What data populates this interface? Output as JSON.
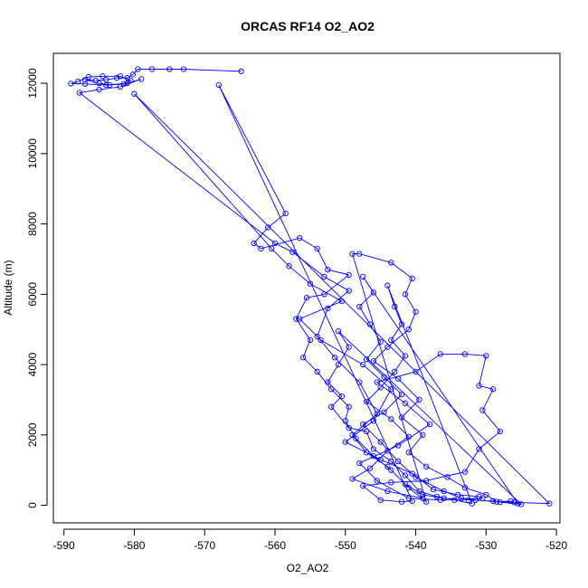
{
  "chart_data": {
    "type": "scatter",
    "title": "ORCAS RF14 O2_AO2",
    "xlabel": "O2_AO2",
    "ylabel": "Altitude (m)",
    "xlim": [
      -591.5,
      -519.5
    ],
    "ylim": [
      -500,
      12850
    ],
    "x_ticks": [
      -590,
      -580,
      -570,
      -560,
      -550,
      -540,
      -530,
      -520
    ],
    "y_ticks": [
      0,
      2000,
      4000,
      6000,
      8000,
      10000,
      12000
    ],
    "x_tick_labels": [
      "-590",
      "-580",
      "-570",
      "-560",
      "-550",
      "-540",
      "-530",
      "-520"
    ],
    "y_tick_labels": [
      "0",
      "2000",
      "4000",
      "6000",
      "8000",
      "10000",
      "12000"
    ],
    "grid": false,
    "legend": "none",
    "color": "#0000ff",
    "series": [
      {
        "marker": "open-circle",
        "line": true,
        "points": [
          [
            -564.8,
            12340
          ],
          [
            -573.0,
            12400
          ],
          [
            -575.0,
            12400
          ],
          [
            -577.5,
            12400
          ],
          [
            -579.5,
            12400
          ],
          [
            -580.2,
            12250
          ],
          [
            -581.0,
            12150
          ],
          [
            -582.5,
            12150
          ],
          [
            -584.0,
            12100
          ],
          [
            -585.5,
            12080
          ],
          [
            -587.0,
            12100
          ],
          [
            -585.0,
            12000
          ],
          [
            -583.5,
            11950
          ],
          [
            -581.5,
            11980
          ],
          [
            -580.5,
            12080
          ],
          [
            -582.0,
            12200
          ],
          [
            -584.5,
            12200
          ],
          [
            -586.5,
            12180
          ],
          [
            -588.0,
            12050
          ],
          [
            -589.0,
            11990
          ],
          [
            -587.0,
            11980
          ],
          [
            -584.0,
            11950
          ],
          [
            -581.0,
            12000
          ],
          [
            -579.0,
            12120
          ],
          [
            -582.0,
            11900
          ],
          [
            -585.0,
            11820
          ],
          [
            -587.8,
            11730
          ],
          [
            -560.0,
            7450
          ],
          [
            -557.5,
            7200
          ],
          [
            -553.0,
            6500
          ],
          [
            -549.5,
            6100
          ],
          [
            -552.5,
            5600
          ],
          [
            -554.0,
            4800
          ],
          [
            -551.5,
            4200
          ],
          [
            -548.0,
            3500
          ],
          [
            -545.5,
            2600
          ],
          [
            -549.0,
            2000
          ],
          [
            -547.0,
            1500
          ],
          [
            -544.0,
            1100
          ],
          [
            -541.5,
            600
          ],
          [
            -539.0,
            300
          ],
          [
            -536.0,
            200
          ],
          [
            -532.5,
            150
          ],
          [
            -529.0,
            120
          ],
          [
            -526.0,
            80
          ],
          [
            -521.0,
            50
          ],
          [
            -580.0,
            11700
          ],
          [
            -560.5,
            7300
          ],
          [
            -558.0,
            6800
          ],
          [
            -555.0,
            6300
          ],
          [
            -550.5,
            5800
          ],
          [
            -556.5,
            5300
          ],
          [
            -553.5,
            4700
          ],
          [
            -547.5,
            4000
          ],
          [
            -543.5,
            3300
          ],
          [
            -546.0,
            2400
          ],
          [
            -550.0,
            1800
          ],
          [
            -545.0,
            1300
          ],
          [
            -540.5,
            900
          ],
          [
            -537.5,
            450
          ],
          [
            -534.0,
            300
          ],
          [
            -531.0,
            250
          ],
          [
            -530.5,
            200
          ],
          [
            -536.5,
            150
          ],
          [
            -541.0,
            200
          ],
          [
            -545.5,
            700
          ],
          [
            -548.0,
            1200
          ],
          [
            -542.5,
            1700
          ],
          [
            -538.0,
            2300
          ],
          [
            -541.5,
            2900
          ],
          [
            -545.5,
            3500
          ],
          [
            -540.0,
            3800
          ],
          [
            -536.5,
            4300
          ],
          [
            -533.0,
            4300
          ],
          [
            -530.0,
            4250
          ],
          [
            -531.0,
            3400
          ],
          [
            -529.0,
            3300
          ],
          [
            -530.5,
            2700
          ],
          [
            -528.0,
            2100
          ],
          [
            -531.0,
            1600
          ],
          [
            -533.0,
            950
          ],
          [
            -538.5,
            700
          ],
          [
            -543.5,
            650
          ],
          [
            -547.5,
            550
          ],
          [
            -545.0,
            150
          ],
          [
            -542.0,
            100
          ],
          [
            -540.5,
            120
          ],
          [
            -568.0,
            11950
          ],
          [
            -558.5,
            8300
          ],
          [
            -561.0,
            7900
          ],
          [
            -563.0,
            7450
          ],
          [
            -562.0,
            7300
          ],
          [
            -556.5,
            7600
          ],
          [
            -554.0,
            7300
          ],
          [
            -552.5,
            6700
          ],
          [
            -549.5,
            6550
          ],
          [
            -553.0,
            6000
          ],
          [
            -555.5,
            5900
          ],
          [
            -557.0,
            5300
          ],
          [
            -555.0,
            4700
          ],
          [
            -556.0,
            4200
          ],
          [
            -554.0,
            3800
          ],
          [
            -552.0,
            3300
          ],
          [
            -549.5,
            2800
          ],
          [
            -550.0,
            2400
          ],
          [
            -548.5,
            1900
          ],
          [
            -546.0,
            1400
          ],
          [
            -543.5,
            1000
          ],
          [
            -541.0,
            500
          ],
          [
            -538.5,
            100
          ],
          [
            -549.0,
            7150
          ],
          [
            -548.0,
            7150
          ],
          [
            -543.5,
            6900
          ],
          [
            -540.5,
            6450
          ],
          [
            -541.5,
            6000
          ],
          [
            -540.0,
            5500
          ],
          [
            -541.0,
            5000
          ],
          [
            -544.0,
            4500
          ],
          [
            -546.0,
            4100
          ],
          [
            -542.5,
            3600
          ],
          [
            -539.5,
            3000
          ],
          [
            -542.0,
            2500
          ],
          [
            -539.0,
            2000
          ],
          [
            -541.0,
            1500
          ],
          [
            -538.5,
            1100
          ],
          [
            -535.5,
            800
          ],
          [
            -533.0,
            500
          ],
          [
            -530.0,
            300
          ],
          [
            -528.5,
            100
          ],
          [
            -526.5,
            120
          ],
          [
            -525.5,
            50
          ],
          [
            -547.5,
            6500
          ],
          [
            -546.0,
            6050
          ],
          [
            -548.0,
            5650
          ],
          [
            -546.5,
            5150
          ],
          [
            -545.0,
            4650
          ],
          [
            -547.0,
            4150
          ],
          [
            -544.5,
            3650
          ],
          [
            -542.0,
            3150
          ],
          [
            -544.5,
            2650
          ],
          [
            -547.5,
            2300
          ],
          [
            -545.0,
            1800
          ],
          [
            -542.5,
            1250
          ],
          [
            -540.0,
            800
          ],
          [
            -536.0,
            400
          ],
          [
            -533.5,
            200
          ],
          [
            -531.5,
            150
          ],
          [
            -528.0,
            90
          ],
          [
            -525.0,
            30
          ],
          [
            -551.0,
            4950
          ],
          [
            -549.5,
            4500
          ],
          [
            -551.0,
            4000
          ],
          [
            -552.5,
            3500
          ],
          [
            -550.5,
            3100
          ],
          [
            -552.0,
            2800
          ],
          [
            -549.5,
            2200
          ],
          [
            -547.0,
            2100
          ],
          [
            -546.0,
            1600
          ],
          [
            -543.5,
            1250
          ],
          [
            -541.5,
            850
          ],
          [
            -539.5,
            400
          ],
          [
            -537.0,
            250
          ],
          [
            -534.5,
            150
          ],
          [
            -532.0,
            50
          ],
          [
            -544.0,
            6250
          ],
          [
            -543.0,
            5650
          ],
          [
            -542.0,
            5150
          ],
          [
            -543.5,
            4700
          ],
          [
            -541.5,
            4250
          ],
          [
            -543.0,
            3800
          ],
          [
            -545.0,
            3350
          ],
          [
            -547.0,
            2950
          ],
          [
            -543.5,
            2450
          ],
          [
            -541.0,
            1950
          ],
          [
            -544.0,
            1550
          ],
          [
            -546.5,
            1050
          ],
          [
            -549.0,
            750
          ],
          [
            -544.0,
            400
          ],
          [
            -539.0,
            200
          ]
        ]
      }
    ]
  }
}
